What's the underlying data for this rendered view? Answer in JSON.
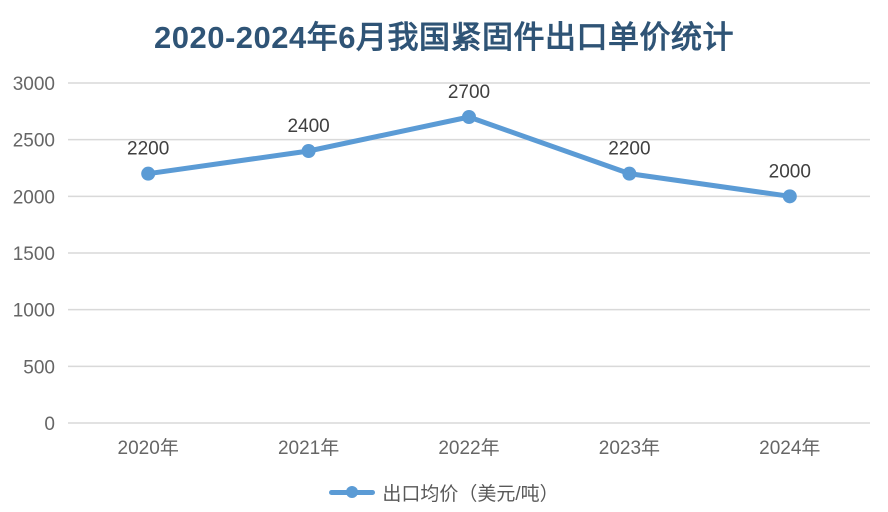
{
  "chart_data": {
    "type": "line",
    "title": "2020-2024年6月我国紧固件出口单价统计",
    "categories": [
      "2020年",
      "2021年",
      "2022年",
      "2023年",
      "2024年"
    ],
    "series": [
      {
        "name": "出口均价（美元/吨）",
        "values": [
          2200,
          2400,
          2700,
          2200,
          2000
        ]
      }
    ],
    "data_labels": [
      "2200",
      "2400",
      "2700",
      "2200",
      "2000"
    ],
    "ylim": [
      0,
      3000
    ],
    "yticks": [
      0,
      500,
      1000,
      1500,
      2000,
      2500,
      3000
    ],
    "xlabel": "",
    "ylabel": "",
    "grid": true,
    "legend_position": "bottom",
    "colors": {
      "line": "#5B9BD5",
      "marker": "#5B9BD5",
      "title": "#2F5476",
      "tick_text": "#666666",
      "data_label_text": "#404040",
      "gridline": "#D9D9D9"
    }
  }
}
